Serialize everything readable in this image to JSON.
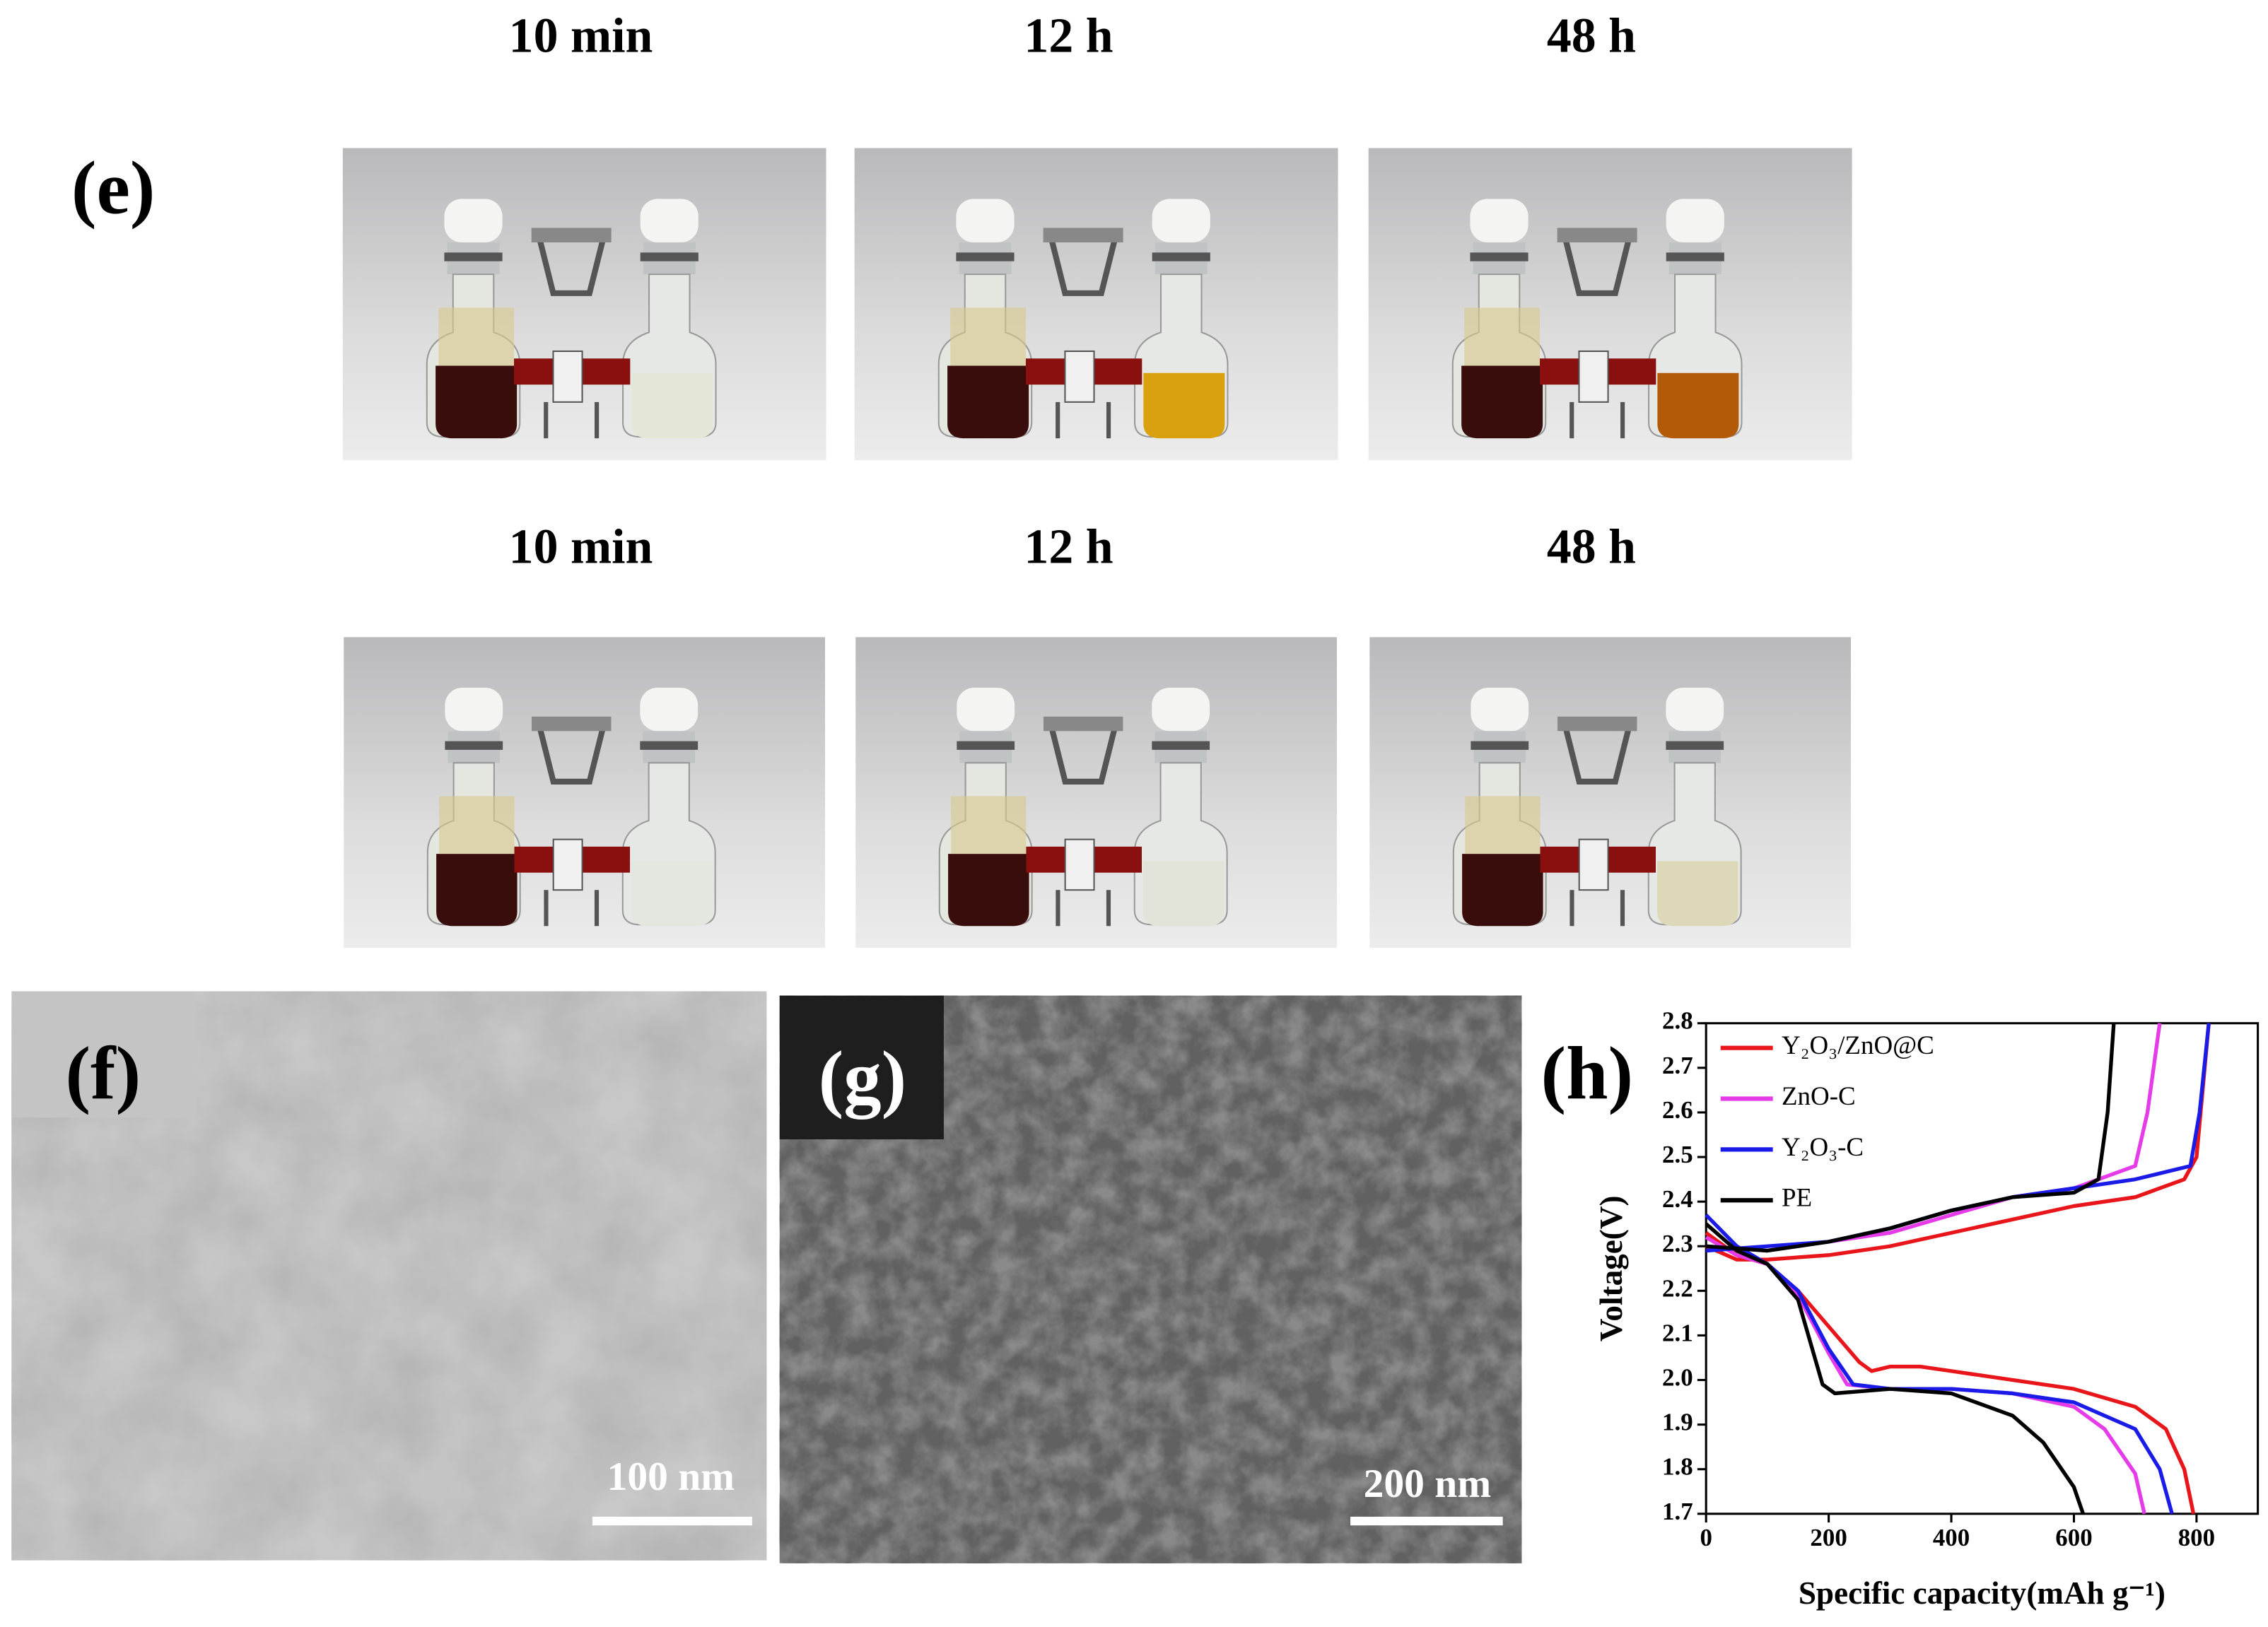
{
  "panel_e": {
    "label": "(e)",
    "rows": [
      {
        "times": [
          "10 min",
          "12 h",
          "48 h"
        ]
      },
      {
        "times": [
          "10 min",
          "12 h",
          "48 h"
        ]
      }
    ]
  },
  "panel_f": {
    "label": "(f)",
    "scale_bar": "100 nm"
  },
  "panel_g": {
    "label": "(g)",
    "scale_bar": "200 nm"
  },
  "chart_data": {
    "type": "line",
    "label": "(h)",
    "x_label": "Specific capacity(mAh g⁻¹)",
    "y_label": "Voltage(V)",
    "xlim": [
      0,
      900
    ],
    "xticks": [
      0,
      200,
      400,
      600,
      800
    ],
    "ylim": [
      1.7,
      2.8
    ],
    "yticks": [
      1.7,
      1.8,
      1.9,
      {
        "value": 2,
        "label": "2.0"
      },
      2.1,
      2.2,
      2.3,
      2.4,
      2.5,
      2.6,
      2.7,
      2.8
    ],
    "grid": false,
    "legend": "upper-left",
    "series": [
      {
        "name": "Y₂O₃/ZnO@C",
        "color": "#e8151b",
        "x": [
          0,
          50,
          100,
          150,
          200,
          250,
          270,
          300,
          350,
          400,
          500,
          600,
          700,
          750,
          780,
          795,
          null,
          0,
          50,
          100,
          200,
          300,
          400,
          500,
          600,
          700,
          780,
          800,
          810,
          820
        ],
        "values": [
          2.33,
          2.28,
          2.26,
          2.2,
          2.12,
          2.04,
          2.02,
          2.03,
          2.03,
          2.02,
          2.0,
          1.98,
          1.94,
          1.89,
          1.8,
          1.7,
          null,
          2.3,
          2.27,
          2.27,
          2.28,
          2.3,
          2.33,
          2.36,
          2.39,
          2.41,
          2.45,
          2.5,
          2.65,
          2.8
        ]
      },
      {
        "name": "ZnO-C",
        "color": "#e53be8",
        "x": [
          0,
          50,
          100,
          150,
          200,
          230,
          300,
          400,
          500,
          600,
          650,
          700,
          715,
          null,
          0,
          100,
          200,
          300,
          400,
          500,
          600,
          700,
          720,
          740
        ],
        "values": [
          2.32,
          2.28,
          2.26,
          2.19,
          2.06,
          1.99,
          1.98,
          1.98,
          1.97,
          1.94,
          1.89,
          1.79,
          1.7,
          null,
          2.3,
          2.29,
          2.31,
          2.33,
          2.37,
          2.41,
          2.43,
          2.48,
          2.6,
          2.8
        ]
      },
      {
        "name": "Y₂O₃-C",
        "color": "#1b1be8",
        "x": [
          0,
          50,
          100,
          150,
          200,
          240,
          300,
          400,
          500,
          600,
          700,
          740,
          760,
          null,
          0,
          100,
          200,
          300,
          400,
          500,
          600,
          700,
          790,
          805,
          820
        ],
        "values": [
          2.37,
          2.3,
          2.26,
          2.2,
          2.07,
          1.99,
          1.98,
          1.98,
          1.97,
          1.95,
          1.89,
          1.8,
          1.7,
          null,
          2.29,
          2.3,
          2.31,
          2.34,
          2.38,
          2.41,
          2.43,
          2.45,
          2.48,
          2.6,
          2.8
        ]
      },
      {
        "name": "PE",
        "color": "#000000",
        "x": [
          0,
          50,
          100,
          150,
          190,
          210,
          300,
          400,
          500,
          550,
          600,
          615,
          null,
          0,
          100,
          200,
          300,
          400,
          500,
          600,
          640,
          655,
          665
        ],
        "values": [
          2.35,
          2.29,
          2.26,
          2.18,
          1.99,
          1.97,
          1.98,
          1.97,
          1.92,
          1.86,
          1.76,
          1.7,
          null,
          2.3,
          2.29,
          2.31,
          2.34,
          2.38,
          2.41,
          2.42,
          2.45,
          2.6,
          2.8
        ]
      }
    ]
  }
}
